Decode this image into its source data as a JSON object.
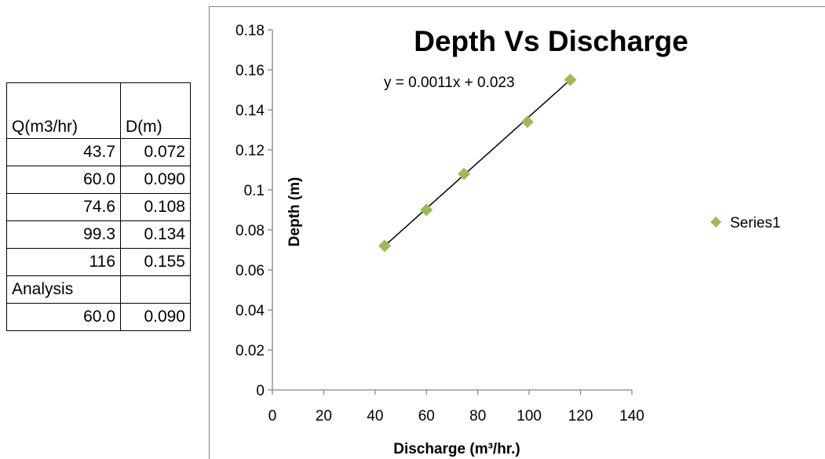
{
  "table": {
    "headers": [
      "Q(m3/hr)",
      "D(m)"
    ],
    "rows": [
      [
        "43.7",
        "0.072"
      ],
      [
        "60.0",
        "0.090"
      ],
      [
        "74.6",
        "0.108"
      ],
      [
        "99.3",
        "0.134"
      ],
      [
        "116",
        "0.155"
      ]
    ],
    "analysis_label": "Analysis",
    "analysis_row": [
      "60.0",
      "0.090"
    ]
  },
  "chart_data": {
    "type": "scatter",
    "title": "Depth Vs Discharge",
    "xlabel": "Discharge (m³/hr.)",
    "ylabel": "Depth (m)",
    "xlim": [
      0,
      140
    ],
    "ylim": [
      0,
      0.18
    ],
    "xticks": [
      "0",
      "20",
      "40",
      "60",
      "80",
      "100",
      "120",
      "140"
    ],
    "yticks": [
      "0",
      "0.02",
      "0.04",
      "0.06",
      "0.08",
      "0.1",
      "0.12",
      "0.14",
      "0.16",
      "0.18"
    ],
    "grid": false,
    "legend_position": "right",
    "marker_color": "#9BBB59",
    "series": [
      {
        "name": "Series1",
        "x": [
          43.7,
          60.0,
          74.6,
          99.3,
          116
        ],
        "y": [
          0.072,
          0.09,
          0.108,
          0.134,
          0.155
        ]
      }
    ],
    "trendline": {
      "equation": "y = 0.0011x + 0.023",
      "x_range": [
        43.7,
        116
      ],
      "slope": 0.0011,
      "intercept": 0.023
    }
  }
}
